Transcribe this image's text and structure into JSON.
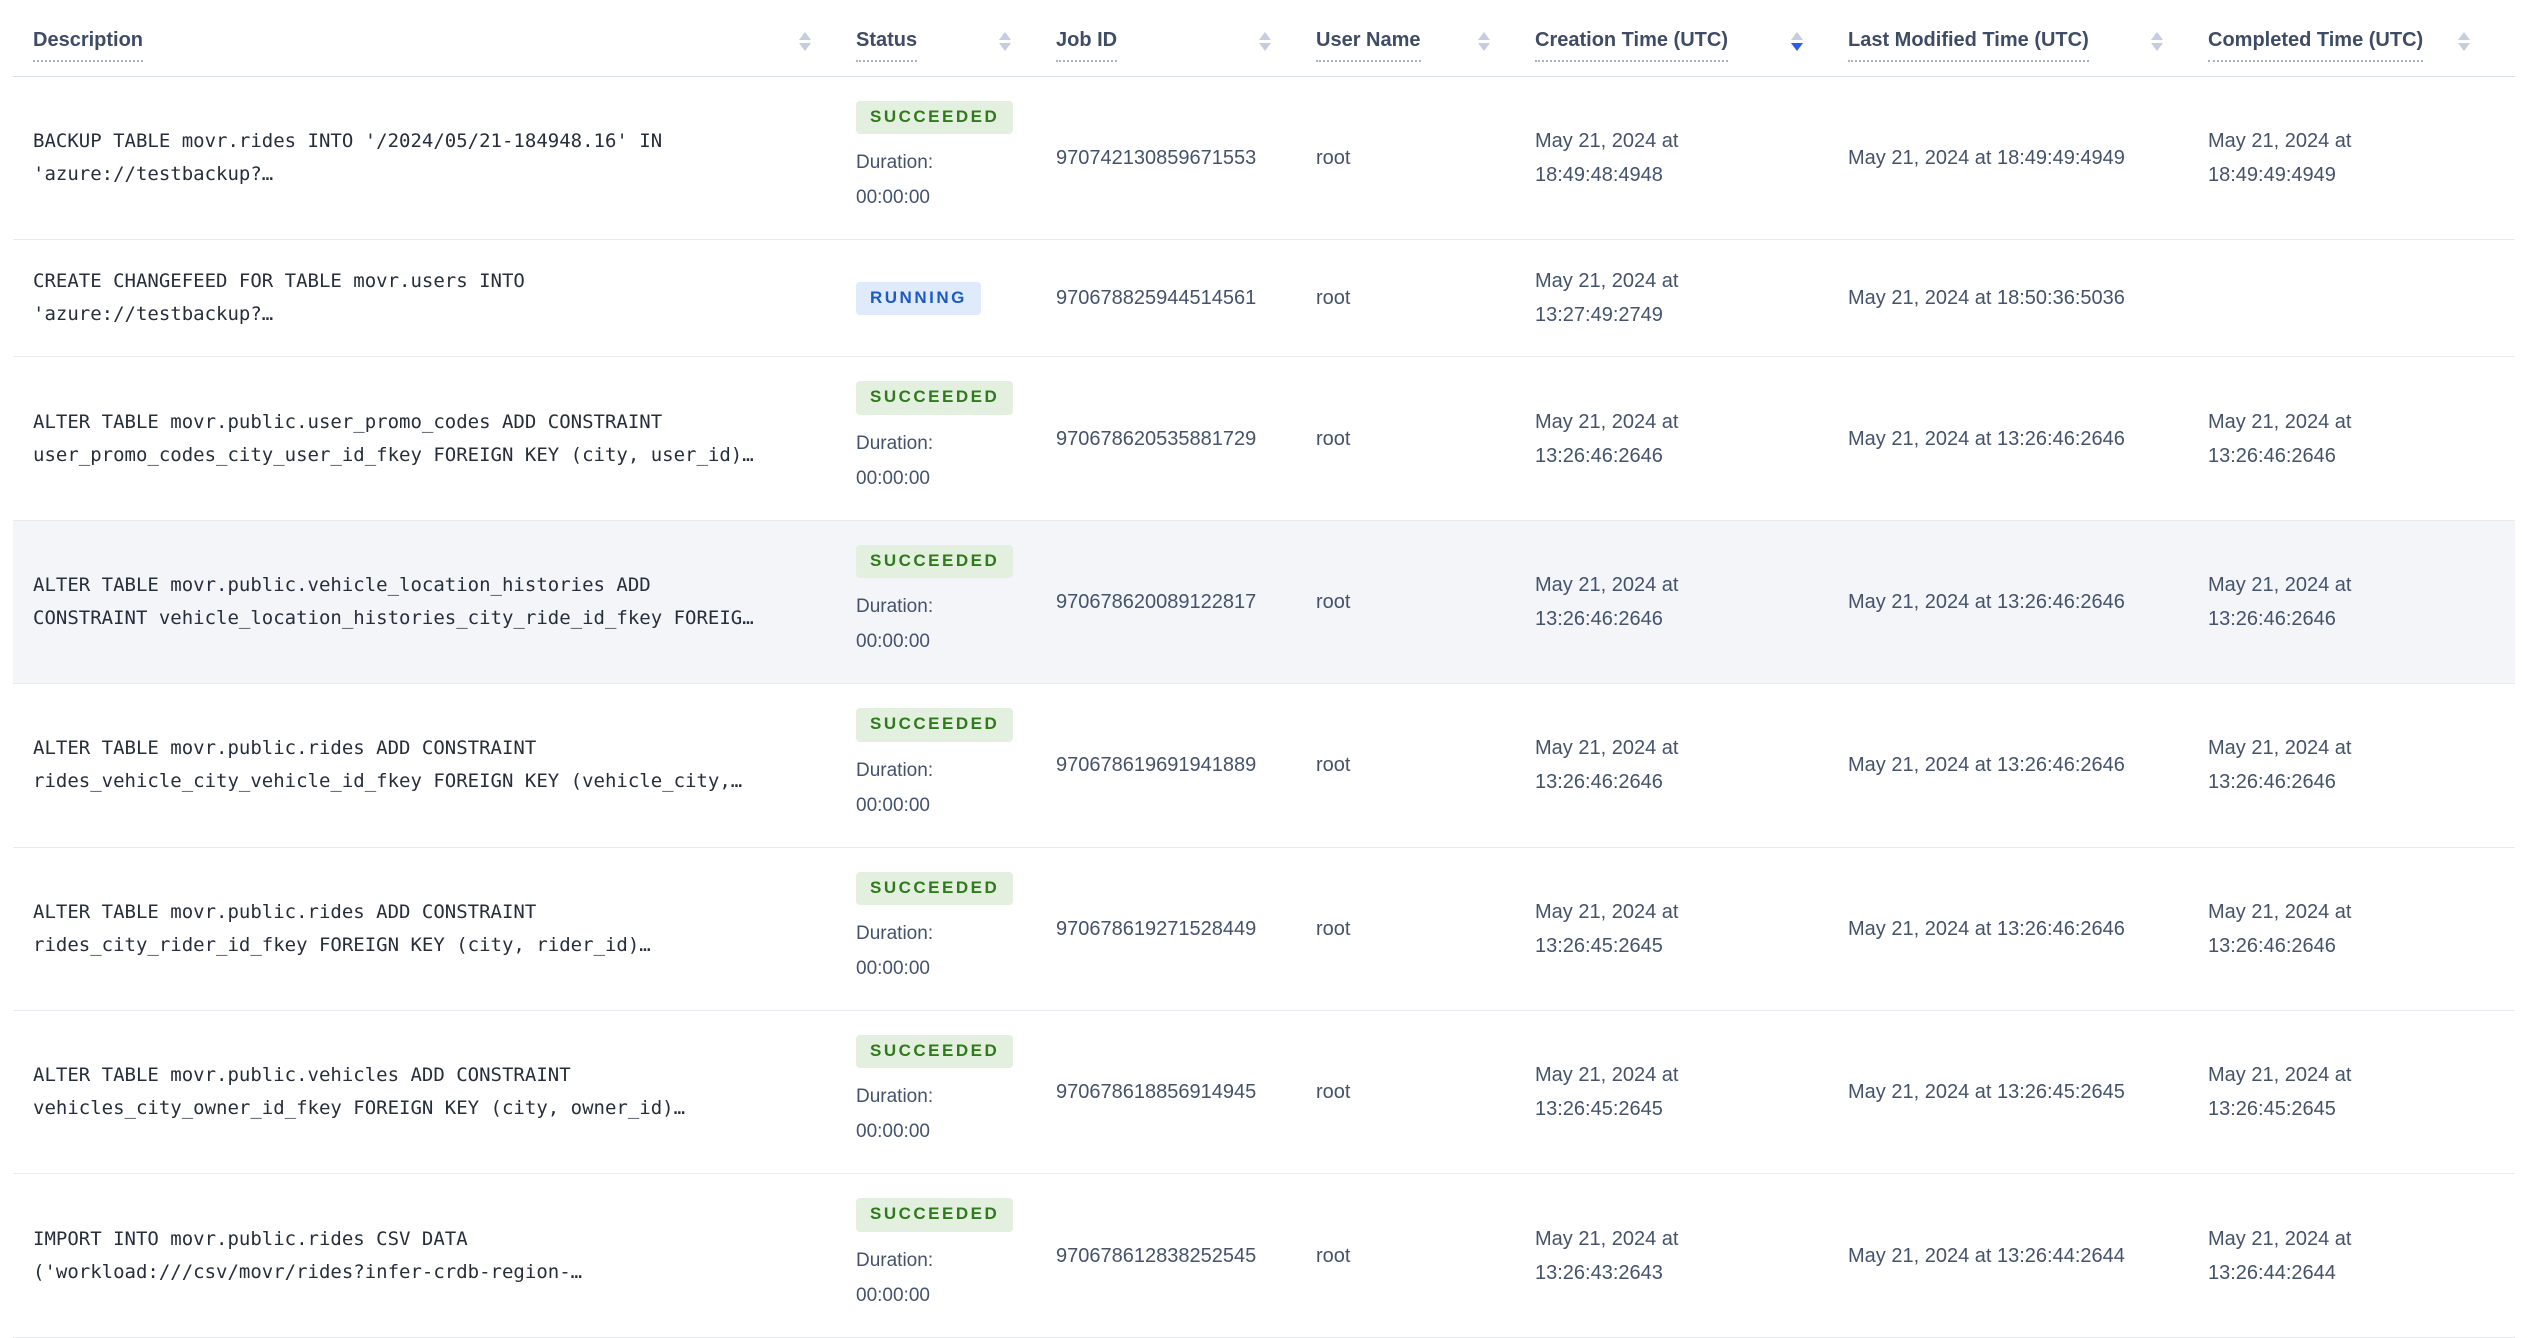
{
  "table": {
    "columns": [
      {
        "label": "Description",
        "sort": "none"
      },
      {
        "label": "Status",
        "sort": "none"
      },
      {
        "label": "Job ID",
        "sort": "none"
      },
      {
        "label": "User Name",
        "sort": "none"
      },
      {
        "label": "Creation Time (UTC)",
        "sort": "desc"
      },
      {
        "label": "Last Modified Time (UTC)",
        "sort": "none"
      },
      {
        "label": "Completed Time (UTC)",
        "sort": "none"
      }
    ],
    "rows": [
      {
        "description": "BACKUP TABLE movr.rides INTO '/2024/05/21-184948.16' IN 'azure://testbackup?…",
        "status": "SUCCEEDED",
        "status_kind": "succeeded",
        "duration_label": "Duration:",
        "duration_value": "00:00:00",
        "job_id": "970742130859671553",
        "user_name": "root",
        "creation_time": "May 21, 2024 at 18:49:48:4948",
        "last_modified_time": "May 21, 2024 at 18:49:49:4949",
        "completed_time": "May 21, 2024 at 18:49:49:4949",
        "highlighted": false
      },
      {
        "description": "CREATE CHANGEFEED FOR TABLE movr.users INTO 'azure://testbackup?…",
        "status": "RUNNING",
        "status_kind": "running",
        "duration_label": "",
        "duration_value": "",
        "job_id": "970678825944514561",
        "user_name": "root",
        "creation_time": "May 21, 2024 at 13:27:49:2749",
        "last_modified_time": "May 21, 2024 at 18:50:36:5036",
        "completed_time": "",
        "highlighted": false
      },
      {
        "description": "ALTER TABLE movr.public.user_promo_codes ADD CONSTRAINT user_promo_codes_city_user_id_fkey FOREIGN KEY (city, user_id)…",
        "status": "SUCCEEDED",
        "status_kind": "succeeded",
        "duration_label": "Duration:",
        "duration_value": "00:00:00",
        "job_id": "970678620535881729",
        "user_name": "root",
        "creation_time": "May 21, 2024 at 13:26:46:2646",
        "last_modified_time": "May 21, 2024 at 13:26:46:2646",
        "completed_time": "May 21, 2024 at 13:26:46:2646",
        "highlighted": false
      },
      {
        "description": "ALTER TABLE movr.public.vehicle_location_histories ADD CONSTRAINT vehicle_location_histories_city_ride_id_fkey FOREIG…",
        "status": "SUCCEEDED",
        "status_kind": "succeeded",
        "duration_label": "Duration:",
        "duration_value": "00:00:00",
        "job_id": "970678620089122817",
        "user_name": "root",
        "creation_time": "May 21, 2024 at 13:26:46:2646",
        "last_modified_time": "May 21, 2024 at 13:26:46:2646",
        "completed_time": "May 21, 2024 at 13:26:46:2646",
        "highlighted": true
      },
      {
        "description": "ALTER TABLE movr.public.rides ADD CONSTRAINT rides_vehicle_city_vehicle_id_fkey FOREIGN KEY (vehicle_city,…",
        "status": "SUCCEEDED",
        "status_kind": "succeeded",
        "duration_label": "Duration:",
        "duration_value": "00:00:00",
        "job_id": "970678619691941889",
        "user_name": "root",
        "creation_time": "May 21, 2024 at 13:26:46:2646",
        "last_modified_time": "May 21, 2024 at 13:26:46:2646",
        "completed_time": "May 21, 2024 at 13:26:46:2646",
        "highlighted": false
      },
      {
        "description": "ALTER TABLE movr.public.rides ADD CONSTRAINT rides_city_rider_id_fkey FOREIGN KEY (city, rider_id)…",
        "status": "SUCCEEDED",
        "status_kind": "succeeded",
        "duration_label": "Duration:",
        "duration_value": "00:00:00",
        "job_id": "970678619271528449",
        "user_name": "root",
        "creation_time": "May 21, 2024 at 13:26:45:2645",
        "last_modified_time": "May 21, 2024 at 13:26:46:2646",
        "completed_time": "May 21, 2024 at 13:26:46:2646",
        "highlighted": false
      },
      {
        "description": "ALTER TABLE movr.public.vehicles ADD CONSTRAINT vehicles_city_owner_id_fkey FOREIGN KEY (city, owner_id)…",
        "status": "SUCCEEDED",
        "status_kind": "succeeded",
        "duration_label": "Duration:",
        "duration_value": "00:00:00",
        "job_id": "970678618856914945",
        "user_name": "root",
        "creation_time": "May 21, 2024 at 13:26:45:2645",
        "last_modified_time": "May 21, 2024 at 13:26:45:2645",
        "completed_time": "May 21, 2024 at 13:26:45:2645",
        "highlighted": false
      },
      {
        "description": "IMPORT INTO movr.public.rides CSV DATA ('workload:///csv/movr/rides?infer-crdb-region-…",
        "status": "SUCCEEDED",
        "status_kind": "succeeded",
        "duration_label": "Duration:",
        "duration_value": "00:00:00",
        "job_id": "970678612838252545",
        "user_name": "root",
        "creation_time": "May 21, 2024 at 13:26:43:2643",
        "last_modified_time": "May 21, 2024 at 13:26:44:2644",
        "completed_time": "May 21, 2024 at 13:26:44:2644",
        "highlighted": false
      }
    ]
  },
  "colors": {
    "sort_active": "#2b5cf0",
    "succeeded_bg": "#e4f0df",
    "succeeded_text": "#2f7a1b",
    "running_bg": "#dfeafb",
    "running_text": "#1d5bc3",
    "row_highlight": "#f3f5f9"
  }
}
